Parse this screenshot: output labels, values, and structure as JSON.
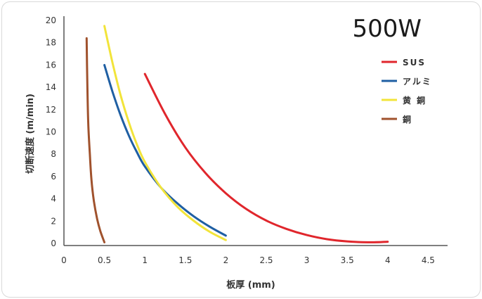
{
  "chart_data": {
    "type": "line",
    "title": "500W",
    "xlabel": "板厚 (mm)",
    "ylabel": "切断速度 (m/min)",
    "xlim": [
      0,
      4.7
    ],
    "ylim": [
      0,
      20
    ],
    "x_ticks": [
      "0",
      "0.5",
      "1",
      "1.5",
      "2",
      "2.5",
      "3",
      "3.5",
      "4",
      "4.5"
    ],
    "x_tick_values": [
      0,
      0.5,
      1,
      1.5,
      2,
      2.5,
      3,
      3.5,
      4,
      4.5
    ],
    "y_ticks": [
      "0",
      "2",
      "4",
      "6",
      "8",
      "10",
      "12",
      "14",
      "16",
      "18",
      "20"
    ],
    "y_tick_values": [
      0,
      2,
      4,
      6,
      8,
      10,
      12,
      14,
      16,
      18,
      20
    ],
    "grid": false,
    "legend_position": "top-right",
    "series": [
      {
        "name": "SUS",
        "color": "#e0262c",
        "points": [
          [
            1.0,
            15.2
          ],
          [
            1.25,
            11.6
          ],
          [
            1.5,
            8.6
          ],
          [
            1.75,
            6.3
          ],
          [
            2.0,
            4.5
          ],
          [
            2.25,
            3.1
          ],
          [
            2.5,
            2.05
          ],
          [
            2.75,
            1.3
          ],
          [
            3.0,
            0.75
          ],
          [
            3.25,
            0.38
          ],
          [
            3.5,
            0.18
          ],
          [
            3.75,
            0.1
          ],
          [
            4.0,
            0.15
          ]
        ]
      },
      {
        "name": "アルミ",
        "color": "#1f5fa3",
        "points": [
          [
            0.5,
            16.0
          ],
          [
            0.6,
            13.6
          ],
          [
            0.7,
            11.5
          ],
          [
            0.8,
            9.7
          ],
          [
            0.9,
            8.2
          ],
          [
            1.0,
            6.9
          ],
          [
            1.2,
            5.0
          ],
          [
            1.4,
            3.6
          ],
          [
            1.6,
            2.45
          ],
          [
            1.8,
            1.5
          ],
          [
            2.0,
            0.7
          ]
        ]
      },
      {
        "name": "黄 銅",
        "color": "#f2e43a",
        "points": [
          [
            0.5,
            19.5
          ],
          [
            0.6,
            16.2
          ],
          [
            0.7,
            13.3
          ],
          [
            0.8,
            10.9
          ],
          [
            0.9,
            8.9
          ],
          [
            1.0,
            7.3
          ],
          [
            1.2,
            5.0
          ],
          [
            1.4,
            3.3
          ],
          [
            1.6,
            2.05
          ],
          [
            1.8,
            1.05
          ],
          [
            2.0,
            0.3
          ]
        ]
      },
      {
        "name": "銅",
        "color": "#a0522d",
        "points": [
          [
            0.28,
            18.4
          ],
          [
            0.29,
            14.0
          ],
          [
            0.3,
            10.8
          ],
          [
            0.32,
            8.0
          ],
          [
            0.34,
            5.7
          ],
          [
            0.37,
            3.8
          ],
          [
            0.41,
            2.2
          ],
          [
            0.45,
            1.1
          ],
          [
            0.5,
            0.1
          ]
        ]
      }
    ]
  }
}
